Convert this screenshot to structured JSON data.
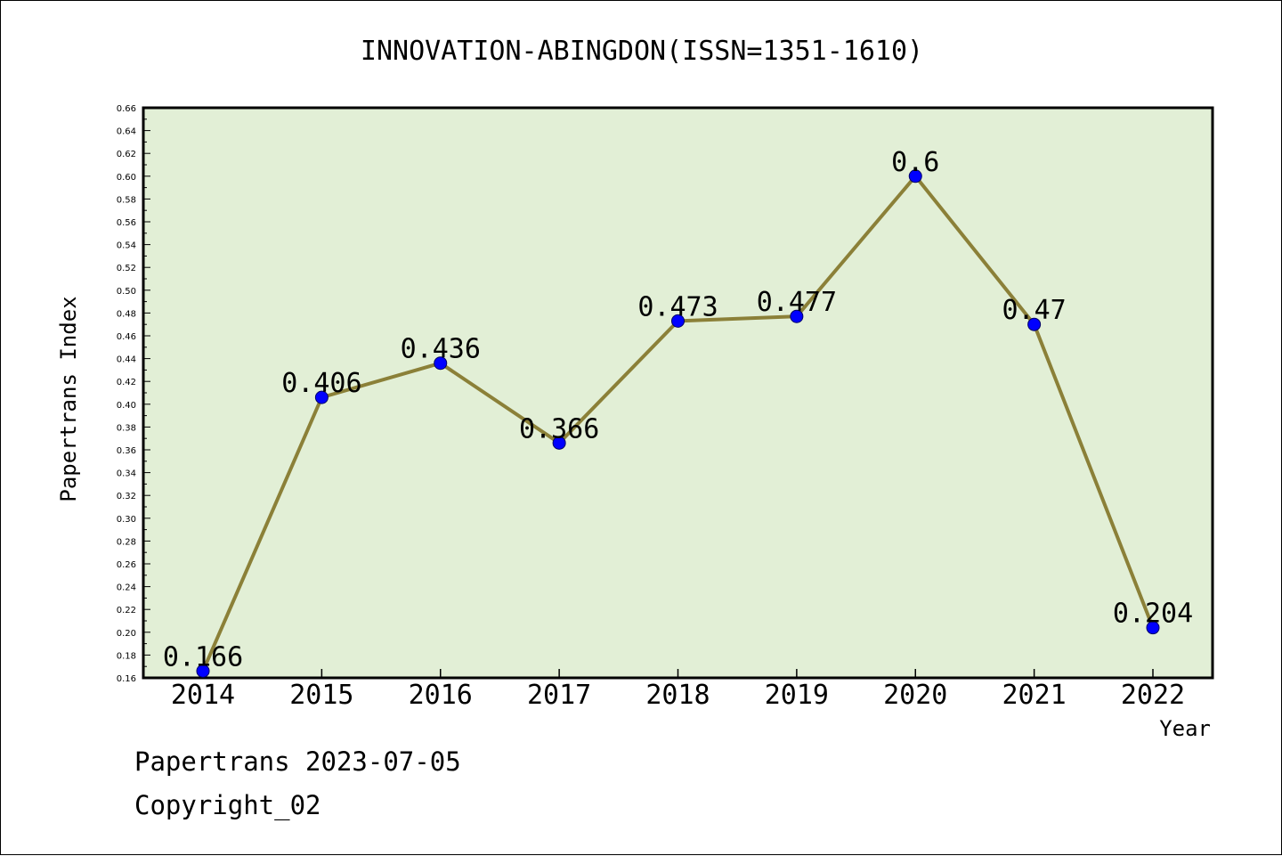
{
  "chart_data": {
    "type": "line",
    "title": "INNOVATION-ABINGDON(ISSN=1351-1610)",
    "xlabel": "Year",
    "ylabel": "Papertrans Index",
    "categories": [
      "2014",
      "2015",
      "2016",
      "2017",
      "2018",
      "2019",
      "2020",
      "2021",
      "2022"
    ],
    "series": [
      {
        "values": [
          0.166,
          0.406,
          0.436,
          0.366,
          0.473,
          0.477,
          0.6,
          0.47,
          0.204
        ]
      }
    ],
    "data_labels": [
      "0.166",
      "0.406",
      "0.436",
      "0.366",
      "0.473",
      "0.477",
      "0.6",
      "0.47",
      "0.204"
    ],
    "ylim": [
      0.16,
      0.66
    ],
    "yticks": [
      "0.16",
      "0.18",
      "0.20",
      "0.22",
      "0.24",
      "0.26",
      "0.28",
      "0.30",
      "0.32",
      "0.34",
      "0.36",
      "0.38",
      "0.40",
      "0.42",
      "0.44",
      "0.46",
      "0.48",
      "0.50",
      "0.52",
      "0.54",
      "0.56",
      "0.58",
      "0.60",
      "0.62",
      "0.64",
      "0.66"
    ],
    "grid": false,
    "legend": "none",
    "colors": {
      "plot_background": "#e2efd6",
      "line": "#8b8038",
      "marker": "#0000ff"
    }
  },
  "footer": {
    "line1": "Papertrans 2023-07-05",
    "line2": "Copyright_02"
  }
}
